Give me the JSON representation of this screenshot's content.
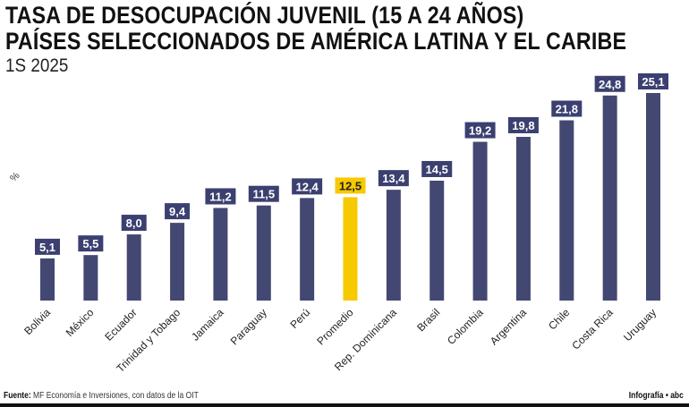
{
  "chart_data": {
    "type": "bar",
    "title": "TASA DE DESOCUPACIÓN JUVENIL (15 A 24 AÑOS)",
    "title2": "PAÍSES SELECCIONADOS DE AMÉRICA LATINA Y EL CARIBE",
    "subtitle": "1S 2025",
    "ylabel": "%",
    "categories": [
      "Bolivia",
      "México",
      "Ecuador",
      "Trinidad y Tobago",
      "Jamaica",
      "Paraguay",
      "Perú",
      "Promedio",
      "Rep. Dominicana",
      "Brasil",
      "Colombia",
      "Argentina",
      "Chile",
      "Costa Rica",
      "Uruguay"
    ],
    "values": [
      5.1,
      5.5,
      8.0,
      9.4,
      11.2,
      11.5,
      12.4,
      12.5,
      13.4,
      14.5,
      19.2,
      19.8,
      21.8,
      24.8,
      25.1
    ],
    "data_labels": [
      "5,1",
      "5,5",
      "8,0",
      "9,4",
      "11,2",
      "11,5",
      "12,4",
      "12,5",
      "13,4",
      "14,5",
      "19,2",
      "19,8",
      "21,8",
      "24,8",
      "25,1"
    ],
    "highlight": "Promedio",
    "ylim": [
      0,
      25.1
    ],
    "grid": false,
    "colors": {
      "bar": "#434872",
      "highlight": "#f7c900",
      "label_bg": "#3b4070"
    }
  },
  "footer": {
    "source_label": "Fuente:",
    "source_text": " MF Economía e Inversiones, con datos de la OIT",
    "credit": "Infografía • abc"
  }
}
